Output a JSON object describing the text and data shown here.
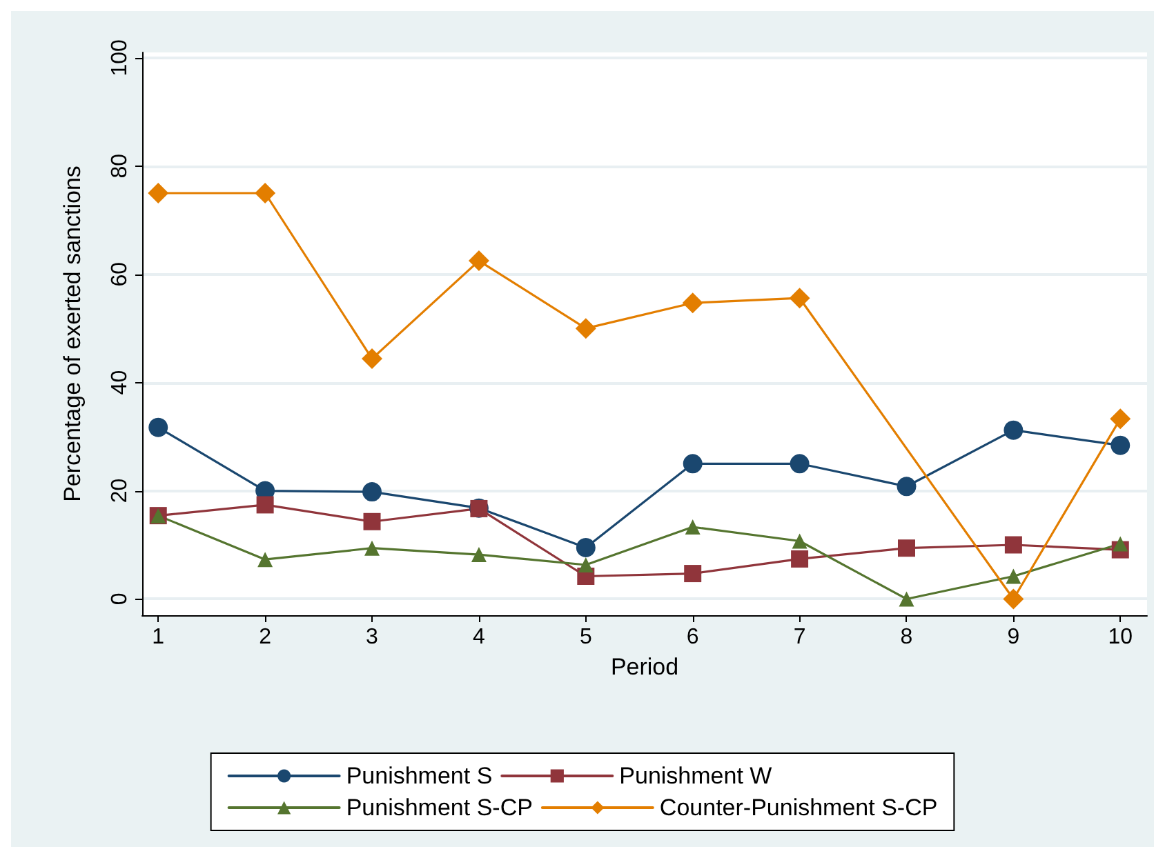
{
  "chart_data": {
    "type": "line",
    "xlabel": "Period",
    "ylabel": "Percentage of exerted sanctions",
    "x": [
      1,
      2,
      3,
      4,
      5,
      6,
      7,
      8,
      9,
      10
    ],
    "xlim": [
      0.85,
      10.25
    ],
    "xticks": [
      1,
      2,
      3,
      4,
      5,
      6,
      7,
      8,
      9,
      10
    ],
    "ylim": [
      -3,
      101
    ],
    "yticks": [
      0,
      20,
      40,
      60,
      80,
      100
    ],
    "grid": "y",
    "legend": "bottom",
    "series": [
      {
        "name": "Punishment S",
        "color": "#1a476f",
        "marker": "circle",
        "values": [
          31.7,
          20,
          19.8,
          16.8,
          9.5,
          25,
          25,
          20.8,
          31.2,
          28.4
        ]
      },
      {
        "name": "Punishment W",
        "color": "#90353b",
        "marker": "square",
        "values": [
          15.4,
          17.4,
          14.3,
          16.7,
          4.2,
          4.7,
          7.4,
          9.4,
          10,
          9.1
        ]
      },
      {
        "name": "Punishment S-CP",
        "color": "#55752f",
        "marker": "triangle",
        "values": [
          15.4,
          7.3,
          9.4,
          8.2,
          6.3,
          13.3,
          10.7,
          0,
          4.2,
          10.2
        ]
      },
      {
        "name": "Counter-Punishment S-CP",
        "color": "#e37e00",
        "marker": "diamond",
        "values": [
          75,
          75,
          44.4,
          62.5,
          50,
          54.7,
          55.6,
          null,
          0,
          33.3
        ]
      }
    ]
  }
}
